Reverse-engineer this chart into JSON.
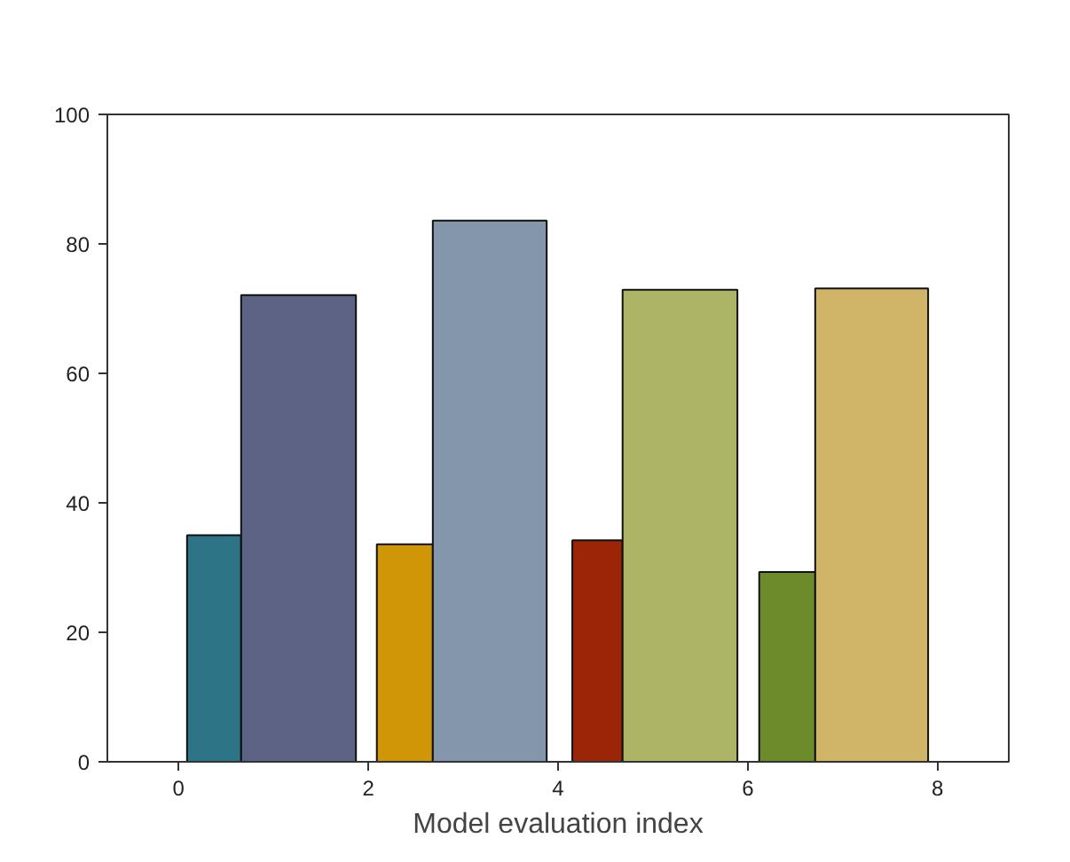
{
  "chart_data": {
    "type": "histogram",
    "xlabel": "Model evaluation index",
    "bins": [
      0.09,
      0.66,
      1.87,
      2.09,
      2.68,
      3.88,
      4.15,
      4.68,
      5.89,
      6.12,
      6.71,
      7.9
    ],
    "values": [
      35.0,
      72.1,
      null,
      33.6,
      83.6,
      null,
      34.2,
      72.9,
      null,
      29.3,
      73.1
    ],
    "colors": [
      "#2e7487",
      "#5c6384",
      null,
      "#cf9707",
      "#8496ac",
      null,
      "#9c2507",
      "#aeb465",
      null,
      "#6e8b2b",
      "#d0b467"
    ],
    "xlim": [
      -0.75,
      8.75
    ],
    "xticks": [
      0,
      2,
      4,
      6,
      8
    ],
    "ylim": [
      0,
      100
    ],
    "yticks": [
      0,
      20,
      40,
      60,
      80,
      100
    ],
    "grid": false
  }
}
